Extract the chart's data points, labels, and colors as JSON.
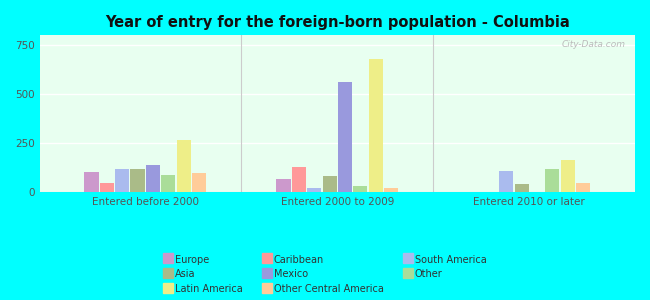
{
  "title": "Year of entry for the foreign-born population - Columbia",
  "groups": [
    "Entered before 2000",
    "Entered 2000 to 2009",
    "Entered 2010 or later"
  ],
  "categories": [
    "Europe",
    "Caribbean",
    "South America",
    "Asia",
    "Mexico",
    "Other",
    "Latin America",
    "Other Central America"
  ],
  "colors": [
    "#cc99cc",
    "#ff9999",
    "#aabbee",
    "#aabb88",
    "#9999dd",
    "#aadd99",
    "#eeee88",
    "#ffcc99"
  ],
  "values": {
    "Entered before 2000": [
      105,
      45,
      120,
      120,
      140,
      85,
      265,
      100
    ],
    "Entered 2000 to 2009": [
      65,
      130,
      20,
      80,
      560,
      30,
      680,
      20
    ],
    "Entered 2010 or later": [
      0,
      0,
      110,
      40,
      0,
      120,
      165,
      45
    ]
  },
  "ylim": [
    0,
    800
  ],
  "yticks": [
    0,
    250,
    500,
    750
  ],
  "fig_bg_color": "#00ffff",
  "plot_bg_color": "#e8fff0",
  "watermark": "City-Data.com",
  "legend_order": [
    "Europe",
    "Asia",
    "Latin America",
    "Caribbean",
    "Mexico",
    "Other Central America",
    "South America",
    "Other"
  ],
  "legend_colors": {
    "Europe": "#cc99cc",
    "Asia": "#aabb88",
    "Latin America": "#eeee88",
    "Caribbean": "#ff9999",
    "Mexico": "#9999dd",
    "Other Central America": "#ffcc99",
    "South America": "#aabbee",
    "Other": "#aadd99"
  }
}
